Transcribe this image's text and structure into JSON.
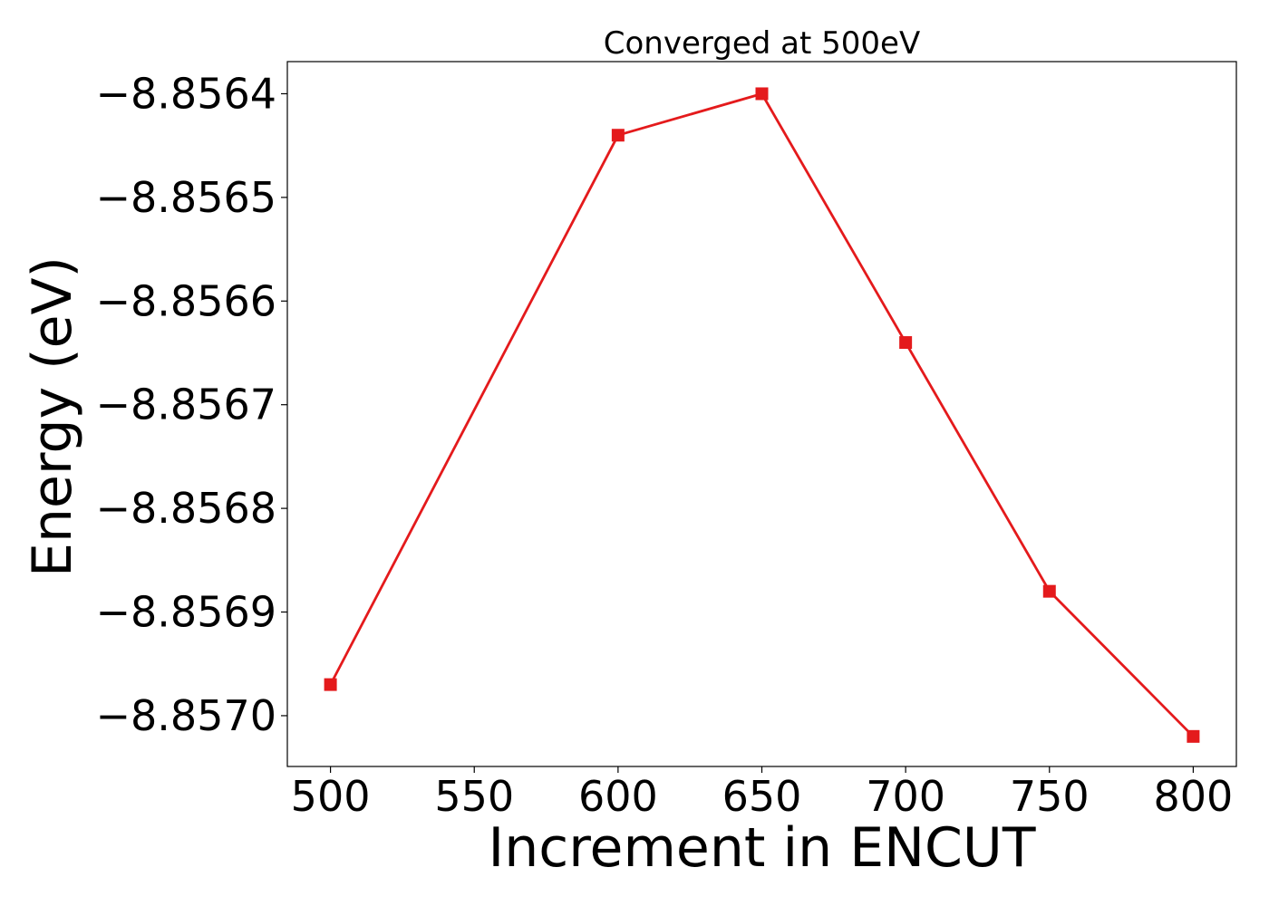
{
  "chart_data": {
    "type": "line",
    "title": "Converged at 500eV",
    "xlabel": "Increment in ENCUT",
    "ylabel": "Energy (eV)",
    "x": [
      500,
      600,
      650,
      700,
      750,
      800
    ],
    "series": [
      {
        "values": [
          -8.85697,
          -8.85644,
          -8.8564,
          -8.85664,
          -8.85688,
          -8.85702
        ],
        "color": "#e41a1c",
        "marker": "square"
      }
    ],
    "xlim": [
      485,
      815
    ],
    "ylim": [
      -8.857049,
      -8.856369
    ],
    "xticks": [
      500,
      550,
      600,
      650,
      700,
      750,
      800
    ],
    "xtick_labels": [
      "500",
      "550",
      "600",
      "650",
      "700",
      "750",
      "800"
    ],
    "yticks": [
      -8.8564,
      -8.8565,
      -8.8566,
      -8.8567,
      -8.8568,
      -8.8569,
      -8.857
    ],
    "ytick_labels": [
      "−8.8564",
      "−8.8565",
      "−8.8566",
      "−8.8567",
      "−8.8568",
      "−8.8569",
      "−8.8570"
    ],
    "grid": false,
    "legend": false
  }
}
